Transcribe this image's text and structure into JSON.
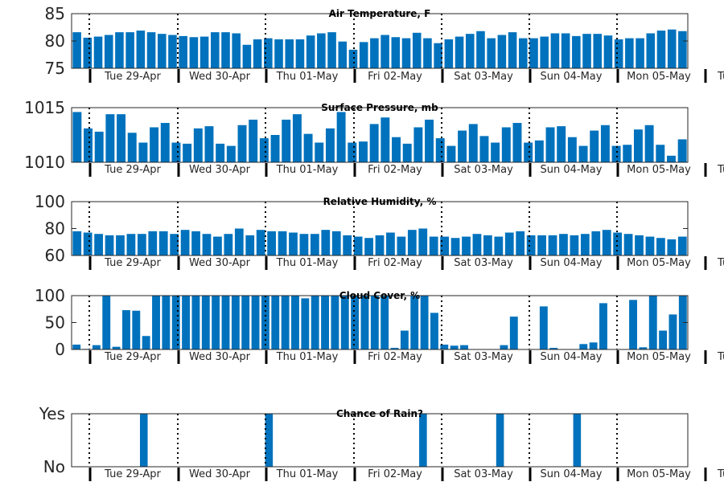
{
  "days": [
    "Tue 29-Apr",
    "Wed 30-Apr",
    "Thu 01-May",
    "Fri 02-May",
    "Sat 03-May",
    "Sun 04-May",
    "Mon 05-May",
    "Tu"
  ],
  "bar_color": "#0072BD",
  "chart_data": [
    {
      "type": "bar",
      "title": "Air Temperature, F",
      "ylim": [
        75,
        85
      ],
      "yticks": [
        75,
        80,
        85
      ],
      "values": [
        81.6,
        80.6,
        80.8,
        81.1,
        81.6,
        81.6,
        81.9,
        81.6,
        81.3,
        81.1,
        80.9,
        80.7,
        80.8,
        81.6,
        81.6,
        81.4,
        79.3,
        80.3,
        80.5,
        80.3,
        80.3,
        80.3,
        81.0,
        81.4,
        81.6,
        79.9,
        78.4,
        79.8,
        80.5,
        81.1,
        80.7,
        80.5,
        81.5,
        80.5,
        79.6,
        80.3,
        80.8,
        81.3,
        81.8,
        80.5,
        81.1,
        81.6,
        80.5,
        80.5,
        80.8,
        81.4,
        81.4,
        80.9,
        81.3,
        81.3,
        81.0,
        80.3,
        80.5,
        80.5,
        81.4,
        81.9,
        82.1,
        81.8
      ]
    },
    {
      "type": "bar",
      "title": "Surface Pressure, mb",
      "ylim": [
        1010,
        1015
      ],
      "yticks": [
        1010,
        1015
      ],
      "values": [
        1014.6,
        1013.1,
        1012.8,
        1014.4,
        1014.4,
        1012.7,
        1011.8,
        1013.2,
        1013.6,
        1011.8,
        1011.7,
        1013.1,
        1013.3,
        1011.7,
        1011.5,
        1013.4,
        1013.9,
        1012.2,
        1012.5,
        1013.9,
        1014.4,
        1012.6,
        1011.8,
        1013.1,
        1014.6,
        1011.8,
        1011.9,
        1013.5,
        1014.1,
        1012.3,
        1011.7,
        1013.2,
        1013.9,
        1012.2,
        1011.5,
        1012.9,
        1013.5,
        1012.4,
        1011.8,
        1013.2,
        1013.6,
        1011.8,
        1012.0,
        1013.2,
        1013.3,
        1012.3,
        1011.5,
        1012.9,
        1013.4,
        1011.5,
        1011.6,
        1013.0,
        1013.4,
        1011.6,
        1010.6,
        1012.1
      ]
    },
    {
      "type": "bar",
      "title": "Relative Humidity, %",
      "ylim": [
        60,
        100
      ],
      "yticks": [
        60,
        80,
        100
      ],
      "values": [
        78,
        77,
        76,
        75,
        75,
        76,
        76,
        78,
        78,
        76,
        79,
        78,
        76,
        74,
        76,
        80,
        75,
        79,
        78,
        78,
        77,
        76,
        76,
        79,
        78,
        75,
        74,
        73,
        75,
        77,
        74,
        79,
        80,
        74,
        74,
        73,
        74,
        76,
        75,
        74,
        77,
        78,
        75,
        75,
        75,
        76,
        75,
        76,
        78,
        79,
        77,
        76,
        75,
        74,
        73,
        72,
        74
      ]
    },
    {
      "type": "bar",
      "title": "Cloud Cover, %",
      "ylim": [
        0,
        100
      ],
      "yticks": [
        0,
        50,
        100
      ],
      "values": [
        9,
        1,
        8,
        100,
        5,
        73,
        72,
        25,
        100,
        100,
        100,
        100,
        100,
        100,
        100,
        100,
        100,
        100,
        100,
        100,
        100,
        100,
        100,
        95,
        100,
        100,
        100,
        100,
        100,
        100,
        100,
        100,
        3,
        35,
        100,
        100,
        68,
        9,
        7,
        8,
        0,
        0,
        0,
        8,
        61,
        0,
        0,
        80,
        3,
        0,
        0,
        10,
        13,
        86,
        0,
        0,
        92,
        4,
        100,
        35,
        65,
        100
      ]
    },
    {
      "type": "bar",
      "title": "Chance of Rain?",
      "ylim": [
        0,
        1
      ],
      "yticks": [
        0,
        1
      ],
      "yticklabels": [
        "No",
        "Yes"
      ],
      "values": [
        0,
        0,
        0,
        0,
        0,
        0,
        0,
        1,
        0,
        0,
        0,
        0,
        0,
        0,
        0,
        0,
        0,
        0,
        0,
        0,
        1,
        0,
        0,
        0,
        0,
        0,
        0,
        0,
        0,
        0,
        0,
        0,
        0,
        0,
        0,
        0,
        1,
        0,
        0,
        0,
        0,
        0,
        0,
        0,
        1,
        0,
        0,
        0,
        0,
        0,
        0,
        0,
        1,
        0,
        0,
        0,
        0,
        0,
        0,
        0,
        0,
        0,
        0,
        0
      ]
    }
  ]
}
